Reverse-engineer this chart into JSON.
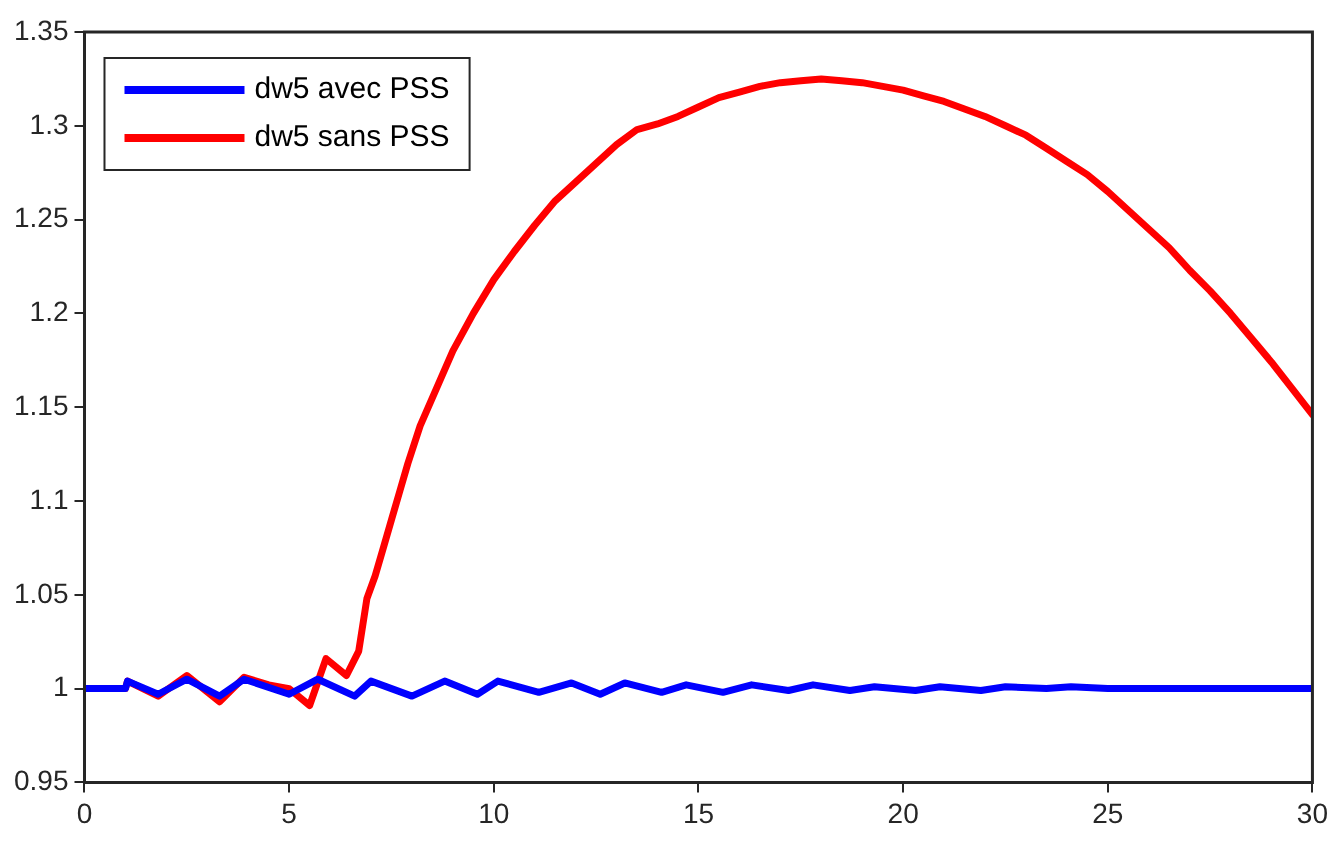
{
  "chart_data": {
    "type": "line",
    "xlim": [
      0,
      30
    ],
    "xticks": [
      0,
      5,
      10,
      15,
      20,
      25,
      30
    ],
    "ylim": [
      0.95,
      1.35
    ],
    "yticks": [
      0.95,
      1,
      1.05,
      1.1,
      1.15,
      1.2,
      1.25,
      1.3,
      1.35
    ],
    "grid": false,
    "legend": "top left",
    "marker": "none",
    "line_style": "solid",
    "series": [
      {
        "name": "dw5 avec PSS",
        "color": "#0000ff",
        "x": [
          0,
          1,
          1.05,
          1.8,
          2.5,
          3.3,
          3.9,
          5.0,
          5.7,
          6.6,
          7.0,
          8.0,
          8.8,
          9.6,
          10.1,
          11.1,
          11.9,
          12.6,
          13.2,
          14.1,
          14.7,
          15.6,
          16.3,
          17.2,
          17.8,
          18.7,
          19.3,
          20.3,
          20.9,
          21.9,
          22.5,
          23.5,
          24.1,
          25,
          26,
          27,
          28,
          29,
          30
        ],
        "values": [
          1,
          1,
          1.004,
          0.997,
          1.005,
          0.996,
          1.005,
          0.997,
          1.005,
          0.996,
          1.004,
          0.996,
          1.004,
          0.997,
          1.004,
          0.998,
          1.003,
          0.997,
          1.003,
          0.998,
          1.002,
          0.998,
          1.002,
          0.999,
          1.002,
          0.999,
          1.001,
          0.999,
          1.001,
          0.999,
          1.001,
          1.0,
          1.001,
          1,
          1,
          1,
          1,
          1,
          1
        ]
      },
      {
        "name": "dw5 sans PSS",
        "color": "#ff0000",
        "x": [
          0,
          1,
          1.05,
          1.8,
          2.5,
          3.3,
          3.9,
          4.5,
          5.0,
          5.5,
          5.9,
          6.4,
          6.7,
          6.9,
          7.1,
          7.3,
          7.5,
          7.7,
          7.9,
          8.2,
          8.6,
          9.0,
          9.5,
          10,
          10.5,
          11,
          11.5,
          12,
          12.5,
          13,
          13.5,
          14,
          14.5,
          15,
          15.5,
          16,
          16.5,
          17,
          17.5,
          18,
          18.5,
          19,
          19.5,
          20,
          20.5,
          21,
          21.5,
          22,
          22.5,
          23,
          23.5,
          24,
          24.5,
          25,
          25.5,
          26,
          26.5,
          27,
          27.5,
          28,
          28.5,
          29,
          29.5,
          30
        ],
        "values": [
          1,
          1,
          1.004,
          0.996,
          1.007,
          0.993,
          1.006,
          1.002,
          1.0,
          0.991,
          1.016,
          1.007,
          1.02,
          1.048,
          1.06,
          1.075,
          1.09,
          1.105,
          1.12,
          1.14,
          1.16,
          1.18,
          1.2,
          1.218,
          1.233,
          1.247,
          1.26,
          1.27,
          1.28,
          1.29,
          1.298,
          1.301,
          1.305,
          1.31,
          1.315,
          1.318,
          1.321,
          1.323,
          1.324,
          1.325,
          1.324,
          1.323,
          1.321,
          1.319,
          1.316,
          1.313,
          1.309,
          1.305,
          1.3,
          1.295,
          1.288,
          1.281,
          1.274,
          1.265,
          1.255,
          1.245,
          1.235,
          1.223,
          1.212,
          1.2,
          1.187,
          1.174,
          1.16,
          1.146
        ]
      }
    ]
  }
}
